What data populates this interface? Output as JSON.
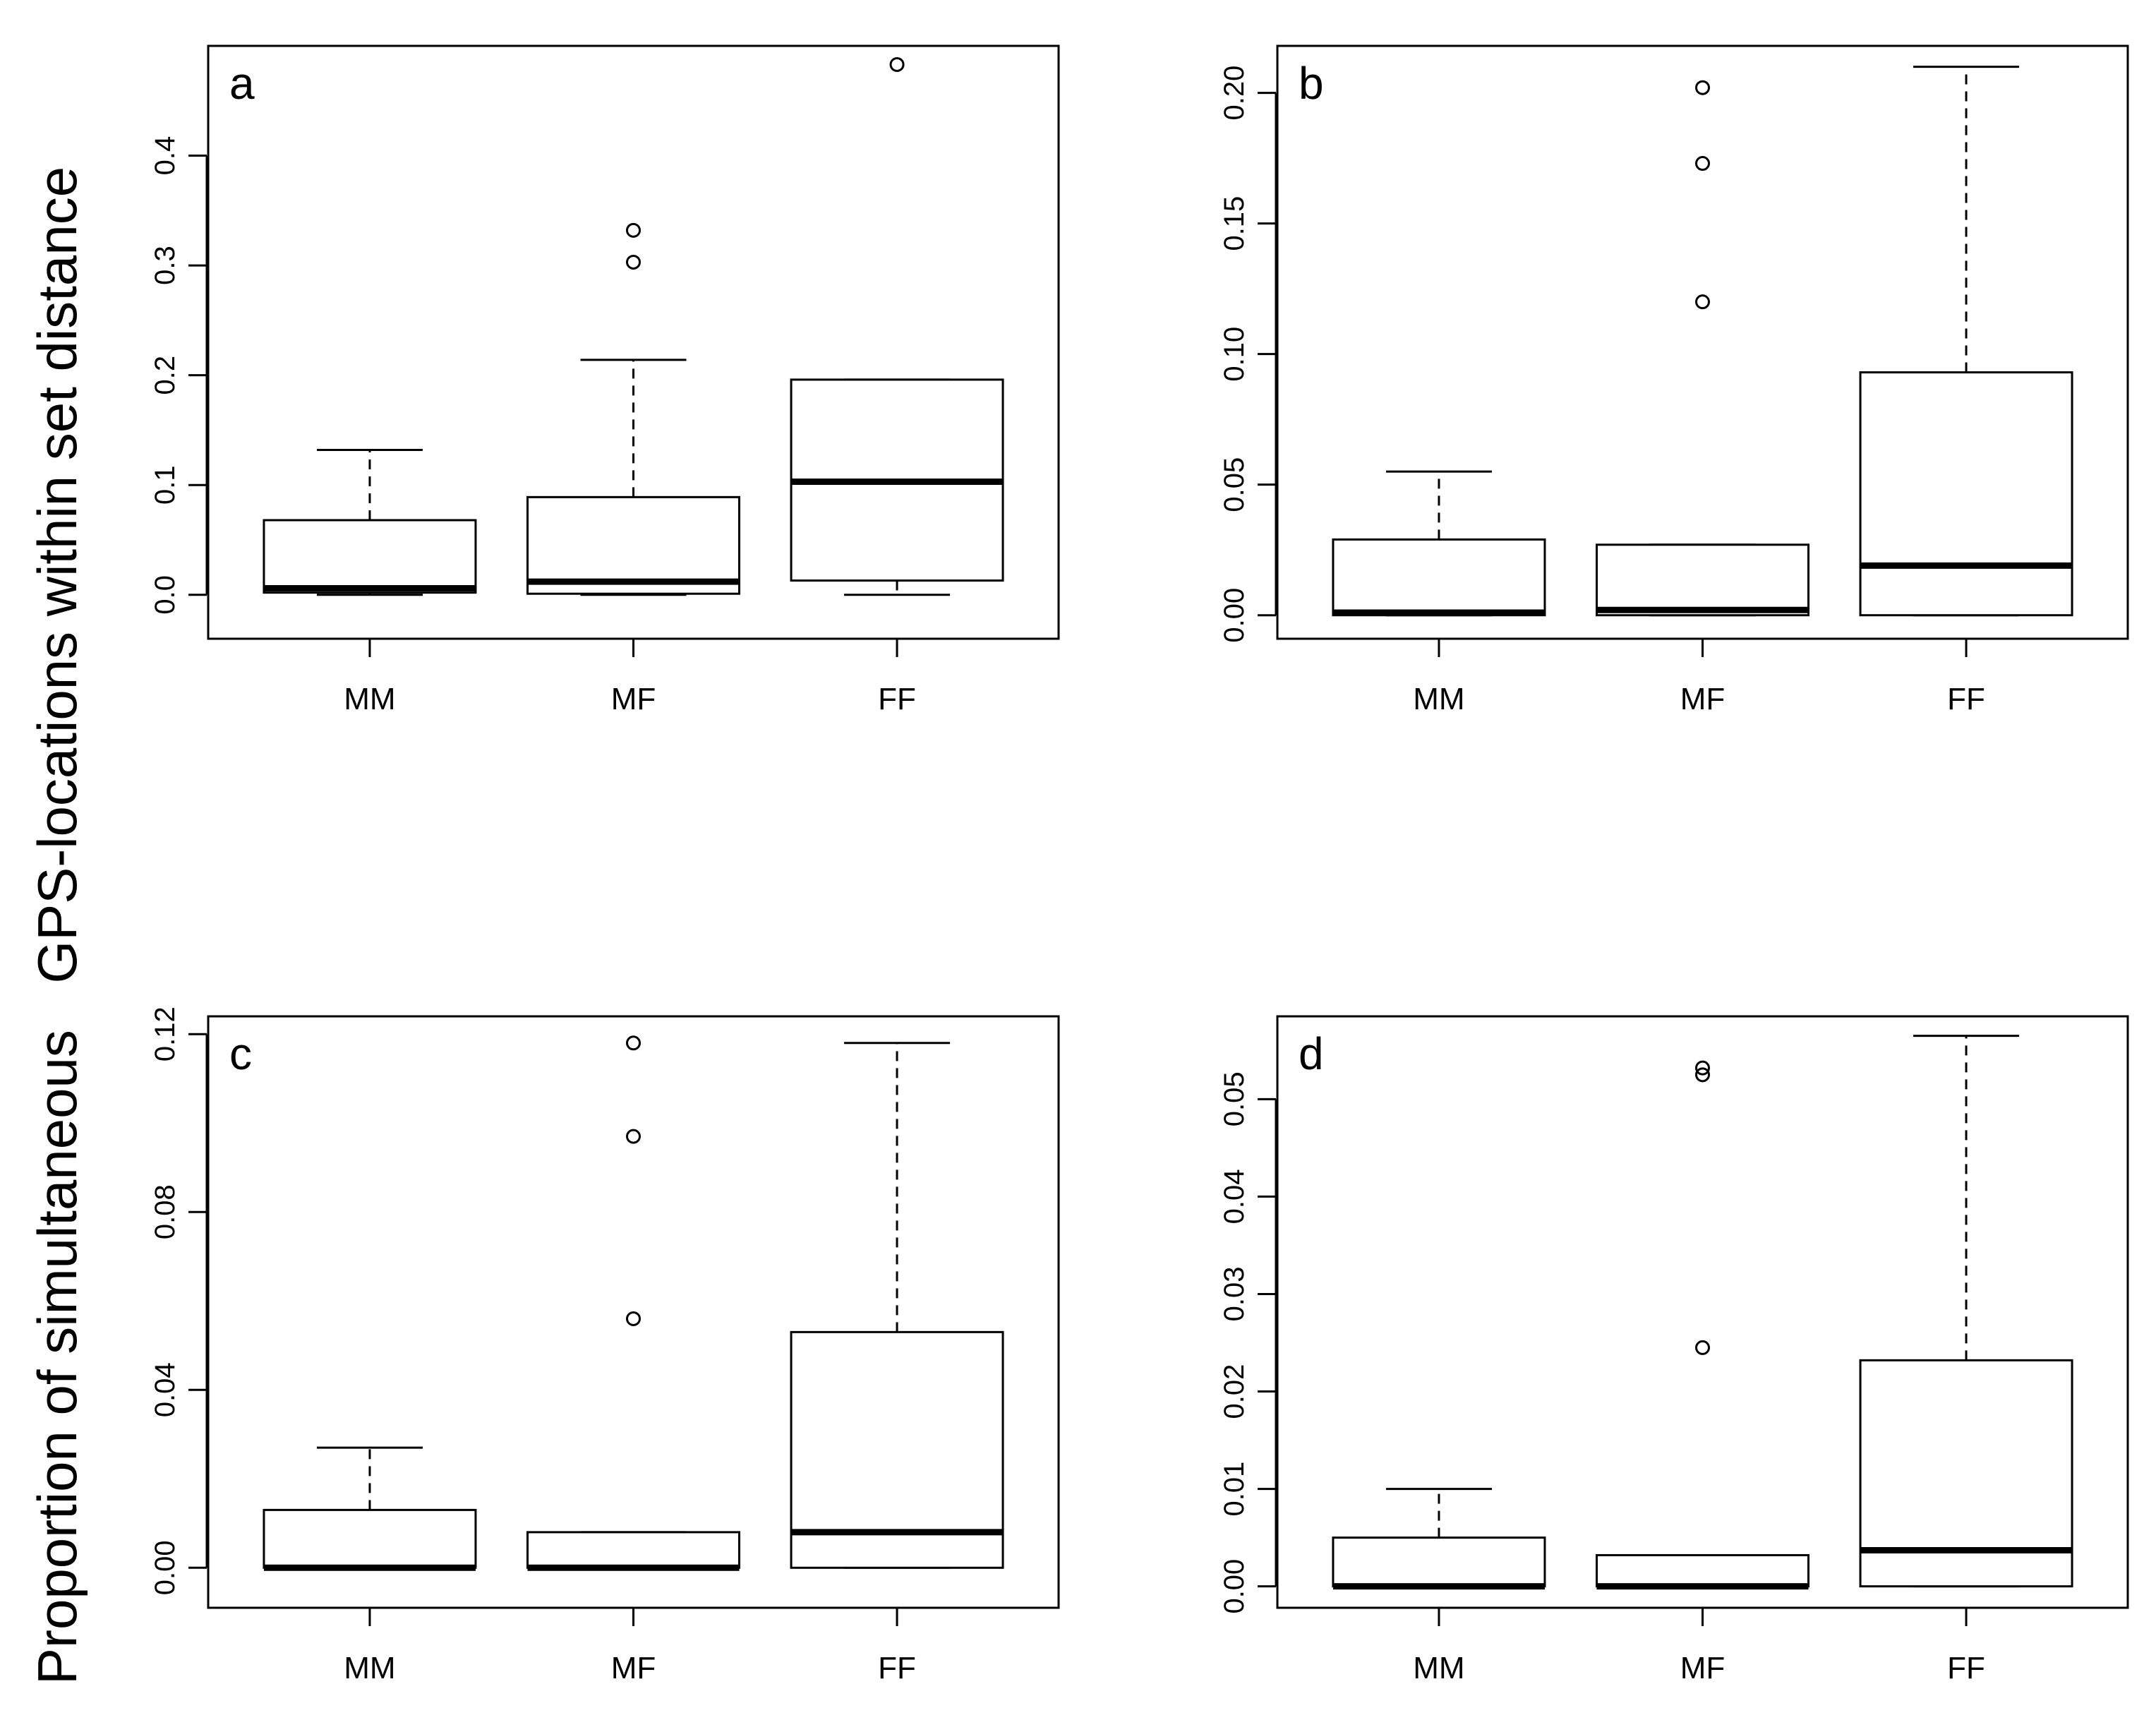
{
  "ylabel": {
    "part1": "Proportion of simultaneous",
    "part2": "GPS-locations within set distance"
  },
  "chart_data": [
    {
      "panel": "a",
      "type": "box",
      "categories": [
        "MM",
        "MF",
        "FF"
      ],
      "ylim": [
        -0.04,
        0.5
      ],
      "yticks": [
        0.0,
        0.1,
        0.2,
        0.3,
        0.4
      ],
      "ytick_labels": [
        "0.0",
        "0.1",
        "0.2",
        "0.3",
        "0.4"
      ],
      "boxes": [
        {
          "min": 0.0,
          "q1": 0.002,
          "median": 0.006,
          "q3": 0.068,
          "max": 0.132,
          "outliers": []
        },
        {
          "min": 0.0,
          "q1": 0.001,
          "median": 0.012,
          "q3": 0.089,
          "max": 0.214,
          "outliers": [
            0.303,
            0.332
          ]
        },
        {
          "min": 0.0,
          "q1": 0.013,
          "median": 0.103,
          "q3": 0.196,
          "max": 0.196,
          "outliers": [
            0.483
          ]
        }
      ]
    },
    {
      "panel": "b",
      "type": "box",
      "categories": [
        "MM",
        "MF",
        "FF"
      ],
      "ylim": [
        -0.009,
        0.218
      ],
      "yticks": [
        0.0,
        0.05,
        0.1,
        0.15,
        0.2
      ],
      "ytick_labels": [
        "0.00",
        "0.05",
        "0.10",
        "0.15",
        "0.20"
      ],
      "boxes": [
        {
          "min": 0.0,
          "q1": 0.0,
          "median": 0.001,
          "q3": 0.029,
          "max": 0.055,
          "outliers": []
        },
        {
          "min": 0.0,
          "q1": 0.0,
          "median": 0.002,
          "q3": 0.027,
          "max": 0.027,
          "outliers": [
            0.12,
            0.173,
            0.202
          ]
        },
        {
          "min": 0.0,
          "q1": 0.0,
          "median": 0.019,
          "q3": 0.093,
          "max": 0.21,
          "outliers": []
        }
      ]
    },
    {
      "panel": "c",
      "type": "box",
      "categories": [
        "MM",
        "MF",
        "FF"
      ],
      "ylim": [
        -0.009,
        0.124
      ],
      "yticks": [
        0.0,
        0.04,
        0.08,
        0.12
      ],
      "ytick_labels": [
        "0.00",
        "0.04",
        "0.08",
        "0.12"
      ],
      "boxes": [
        {
          "min": 0.0,
          "q1": 0.0,
          "median": 0.0,
          "q3": 0.013,
          "max": 0.027,
          "outliers": []
        },
        {
          "min": 0.0,
          "q1": 0.0,
          "median": 0.0,
          "q3": 0.008,
          "max": 0.008,
          "outliers": [
            0.056,
            0.097,
            0.118
          ]
        },
        {
          "min": 0.0,
          "q1": 0.0,
          "median": 0.008,
          "q3": 0.053,
          "max": 0.118,
          "outliers": []
        }
      ]
    },
    {
      "panel": "d",
      "type": "box",
      "categories": [
        "MM",
        "MF",
        "FF"
      ],
      "ylim": [
        -0.0022,
        0.0585
      ],
      "yticks": [
        0.0,
        0.01,
        0.02,
        0.03,
        0.04,
        0.05
      ],
      "ytick_labels": [
        "0.00",
        "0.01",
        "0.02",
        "0.03",
        "0.04",
        "0.05"
      ],
      "boxes": [
        {
          "min": 0.0,
          "q1": 0.0,
          "median": 0.0,
          "q3": 0.005,
          "max": 0.01,
          "outliers": []
        },
        {
          "min": 0.0,
          "q1": 0.0,
          "median": 0.0,
          "q3": 0.0032,
          "max": 0.0032,
          "outliers": [
            0.0245,
            0.0525,
            0.0532
          ]
        },
        {
          "min": 0.0,
          "q1": 0.0,
          "median": 0.0037,
          "q3": 0.0232,
          "max": 0.0565,
          "outliers": []
        }
      ]
    }
  ]
}
